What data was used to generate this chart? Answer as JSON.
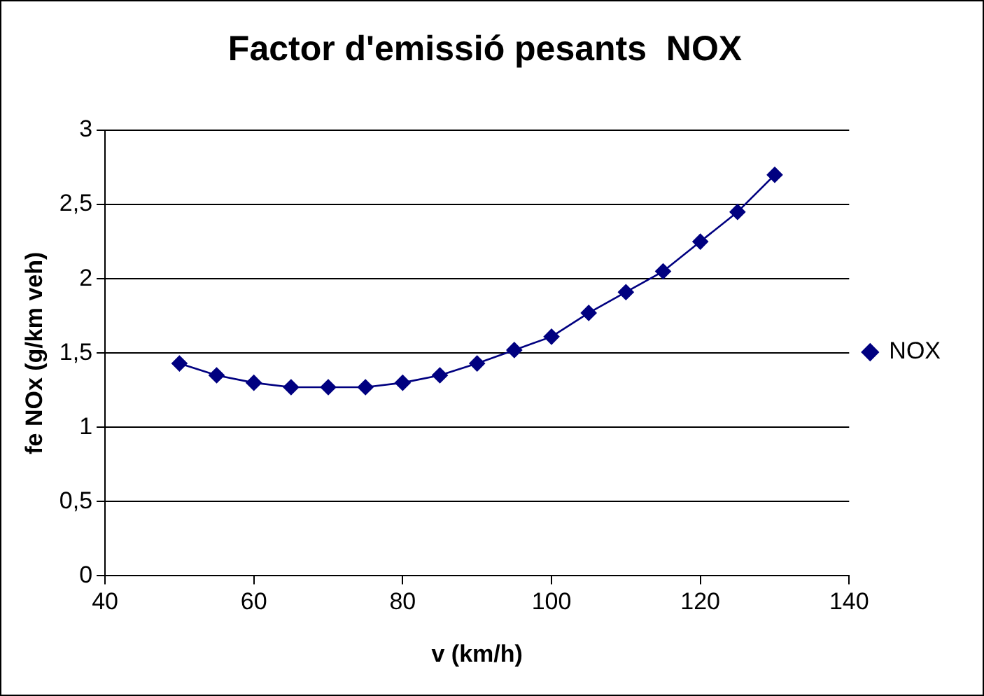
{
  "chart_data": {
    "type": "line",
    "title": "Factor d'emissió pesants  NOX",
    "xlabel": "v (km/h)",
    "ylabel": "fe NOx (g/km veh)",
    "x": [
      50,
      55,
      60,
      65,
      70,
      75,
      80,
      85,
      90,
      95,
      100,
      105,
      110,
      115,
      120,
      125,
      130
    ],
    "series": [
      {
        "name": "NOX",
        "color": "#000080",
        "values": [
          1.43,
          1.35,
          1.3,
          1.27,
          1.27,
          1.27,
          1.3,
          1.35,
          1.43,
          1.52,
          1.61,
          1.77,
          1.91,
          2.05,
          2.25,
          2.45,
          2.7
        ]
      }
    ],
    "xlim": [
      40,
      140
    ],
    "xticks": [
      40,
      60,
      80,
      100,
      120,
      140
    ],
    "ylim": [
      0,
      3
    ],
    "yticks": [
      {
        "value": 0,
        "label": "0"
      },
      {
        "value": 0.5,
        "label": "0,5"
      },
      {
        "value": 1,
        "label": "1"
      },
      {
        "value": 1.5,
        "label": "1,5"
      },
      {
        "value": 2,
        "label": "2"
      },
      {
        "value": 2.5,
        "label": "2,5"
      },
      {
        "value": 3,
        "label": "3"
      }
    ],
    "grid": "y",
    "legend": "right",
    "marker": "diamond",
    "line_style": "solid"
  }
}
